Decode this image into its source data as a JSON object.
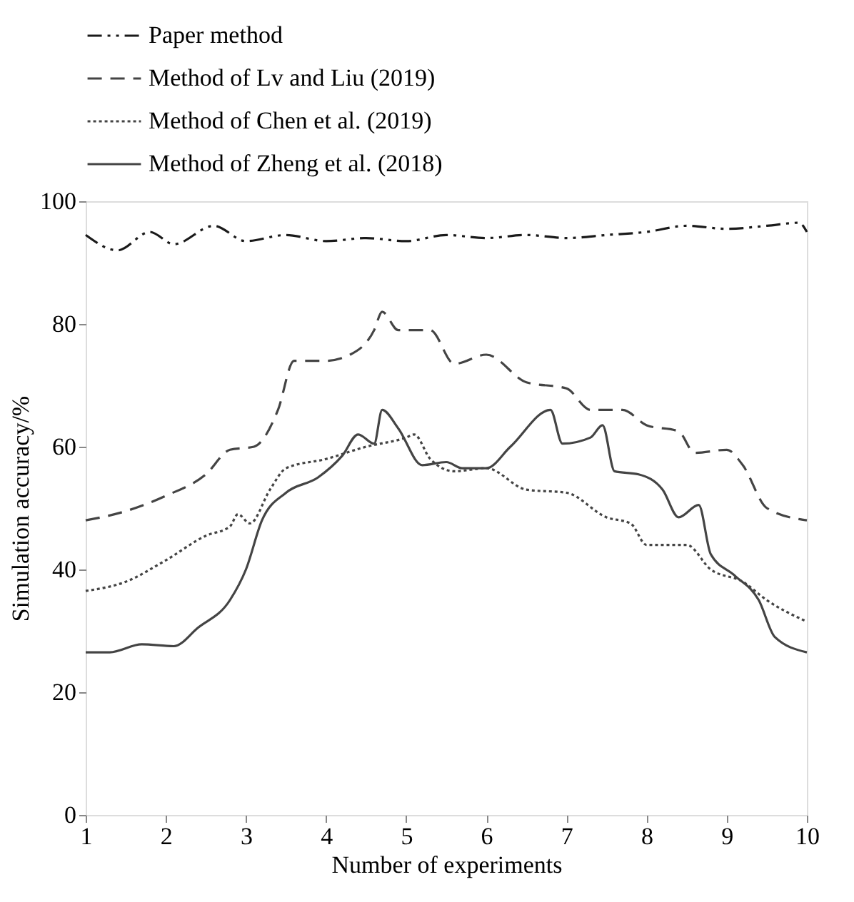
{
  "chart_data": {
    "type": "line",
    "xlabel": "Number of experiments",
    "ylabel": "Simulation accuracy/%",
    "xlim": [
      1,
      10
    ],
    "xticks": [
      1,
      2,
      3,
      4,
      5,
      6,
      7,
      8,
      9,
      10
    ],
    "ylim": [
      0,
      100
    ],
    "yticks": [
      0,
      20,
      40,
      60,
      80,
      100
    ],
    "grid": false,
    "legend": "top left",
    "marker": "none",
    "series": [
      {
        "name": "Paper method",
        "color": "#1a1a1a",
        "line_style": "dashdot",
        "x": [
          1,
          1.4,
          1.8,
          2.1,
          2.6,
          3,
          3.5,
          4,
          4.5,
          5,
          5.5,
          6,
          6.5,
          7,
          7.5,
          8,
          8.5,
          9,
          9.5,
          9.9,
          10
        ],
        "values": [
          94.5,
          92,
          95,
          93,
          96,
          93.5,
          94.5,
          93.5,
          94,
          93.5,
          94.5,
          94,
          94.5,
          94,
          94.5,
          95,
          96,
          95.5,
          96,
          96.5,
          95
        ]
      },
      {
        "name": "Method of Lv and Liu (2019)",
        "color": "#444444",
        "line_style": "dashed",
        "x": [
          1,
          1.5,
          2,
          2.5,
          2.8,
          3.1,
          3.4,
          3.6,
          4,
          4.3,
          4.6,
          4.7,
          4.9,
          5.3,
          5.6,
          6,
          6.5,
          7,
          7.3,
          7.7,
          8,
          8.4,
          8.6,
          9,
          9.2,
          9.5,
          10
        ],
        "values": [
          48,
          49.5,
          52,
          55.5,
          59.5,
          60,
          66,
          74,
          74,
          75,
          79,
          82,
          79,
          79,
          73.5,
          75,
          70.5,
          69.5,
          66,
          66,
          63.5,
          62.5,
          59,
          59.5,
          57,
          50,
          48
        ]
      },
      {
        "name": "Method of Chen et al. (2019)",
        "color": "#444444",
        "line_style": "dotted",
        "x": [
          1,
          1.5,
          2,
          2.5,
          2.8,
          2.9,
          3.05,
          3.3,
          3.5,
          4,
          4.5,
          5,
          5.1,
          5.3,
          5.6,
          6,
          6.5,
          7,
          7.5,
          7.8,
          8,
          8.5,
          8.8,
          9.2,
          9.5,
          10
        ],
        "values": [
          36.5,
          38,
          41.5,
          45.5,
          47,
          49,
          47.5,
          53,
          56.5,
          58,
          60,
          61.5,
          62,
          58,
          56,
          56.5,
          53,
          52.5,
          48.5,
          47.5,
          44,
          44,
          40,
          38,
          35,
          31.5
        ]
      },
      {
        "name": "Method of Zheng et al. (2018)",
        "color": "#444444",
        "line_style": "solid",
        "x": [
          1,
          1.3,
          1.7,
          2.1,
          2.4,
          2.8,
          3,
          3.2,
          3.5,
          3.9,
          4.2,
          4.4,
          4.6,
          4.7,
          4.9,
          5.2,
          5.5,
          5.7,
          6,
          6.3,
          6.8,
          6.95,
          7.3,
          7.45,
          7.6,
          7.9,
          8.2,
          8.4,
          8.65,
          8.8,
          9.1,
          9.4,
          9.6,
          10
        ],
        "values": [
          26.5,
          26.5,
          27.8,
          27.5,
          30.5,
          35,
          40,
          48,
          52.5,
          55,
          58.5,
          62,
          60.5,
          66,
          63,
          57,
          57.5,
          56.5,
          56.5,
          60,
          66,
          60.5,
          61.5,
          63.5,
          56,
          55.5,
          53,
          48.5,
          50.5,
          42.5,
          39,
          35,
          29,
          26.5
        ]
      }
    ]
  }
}
